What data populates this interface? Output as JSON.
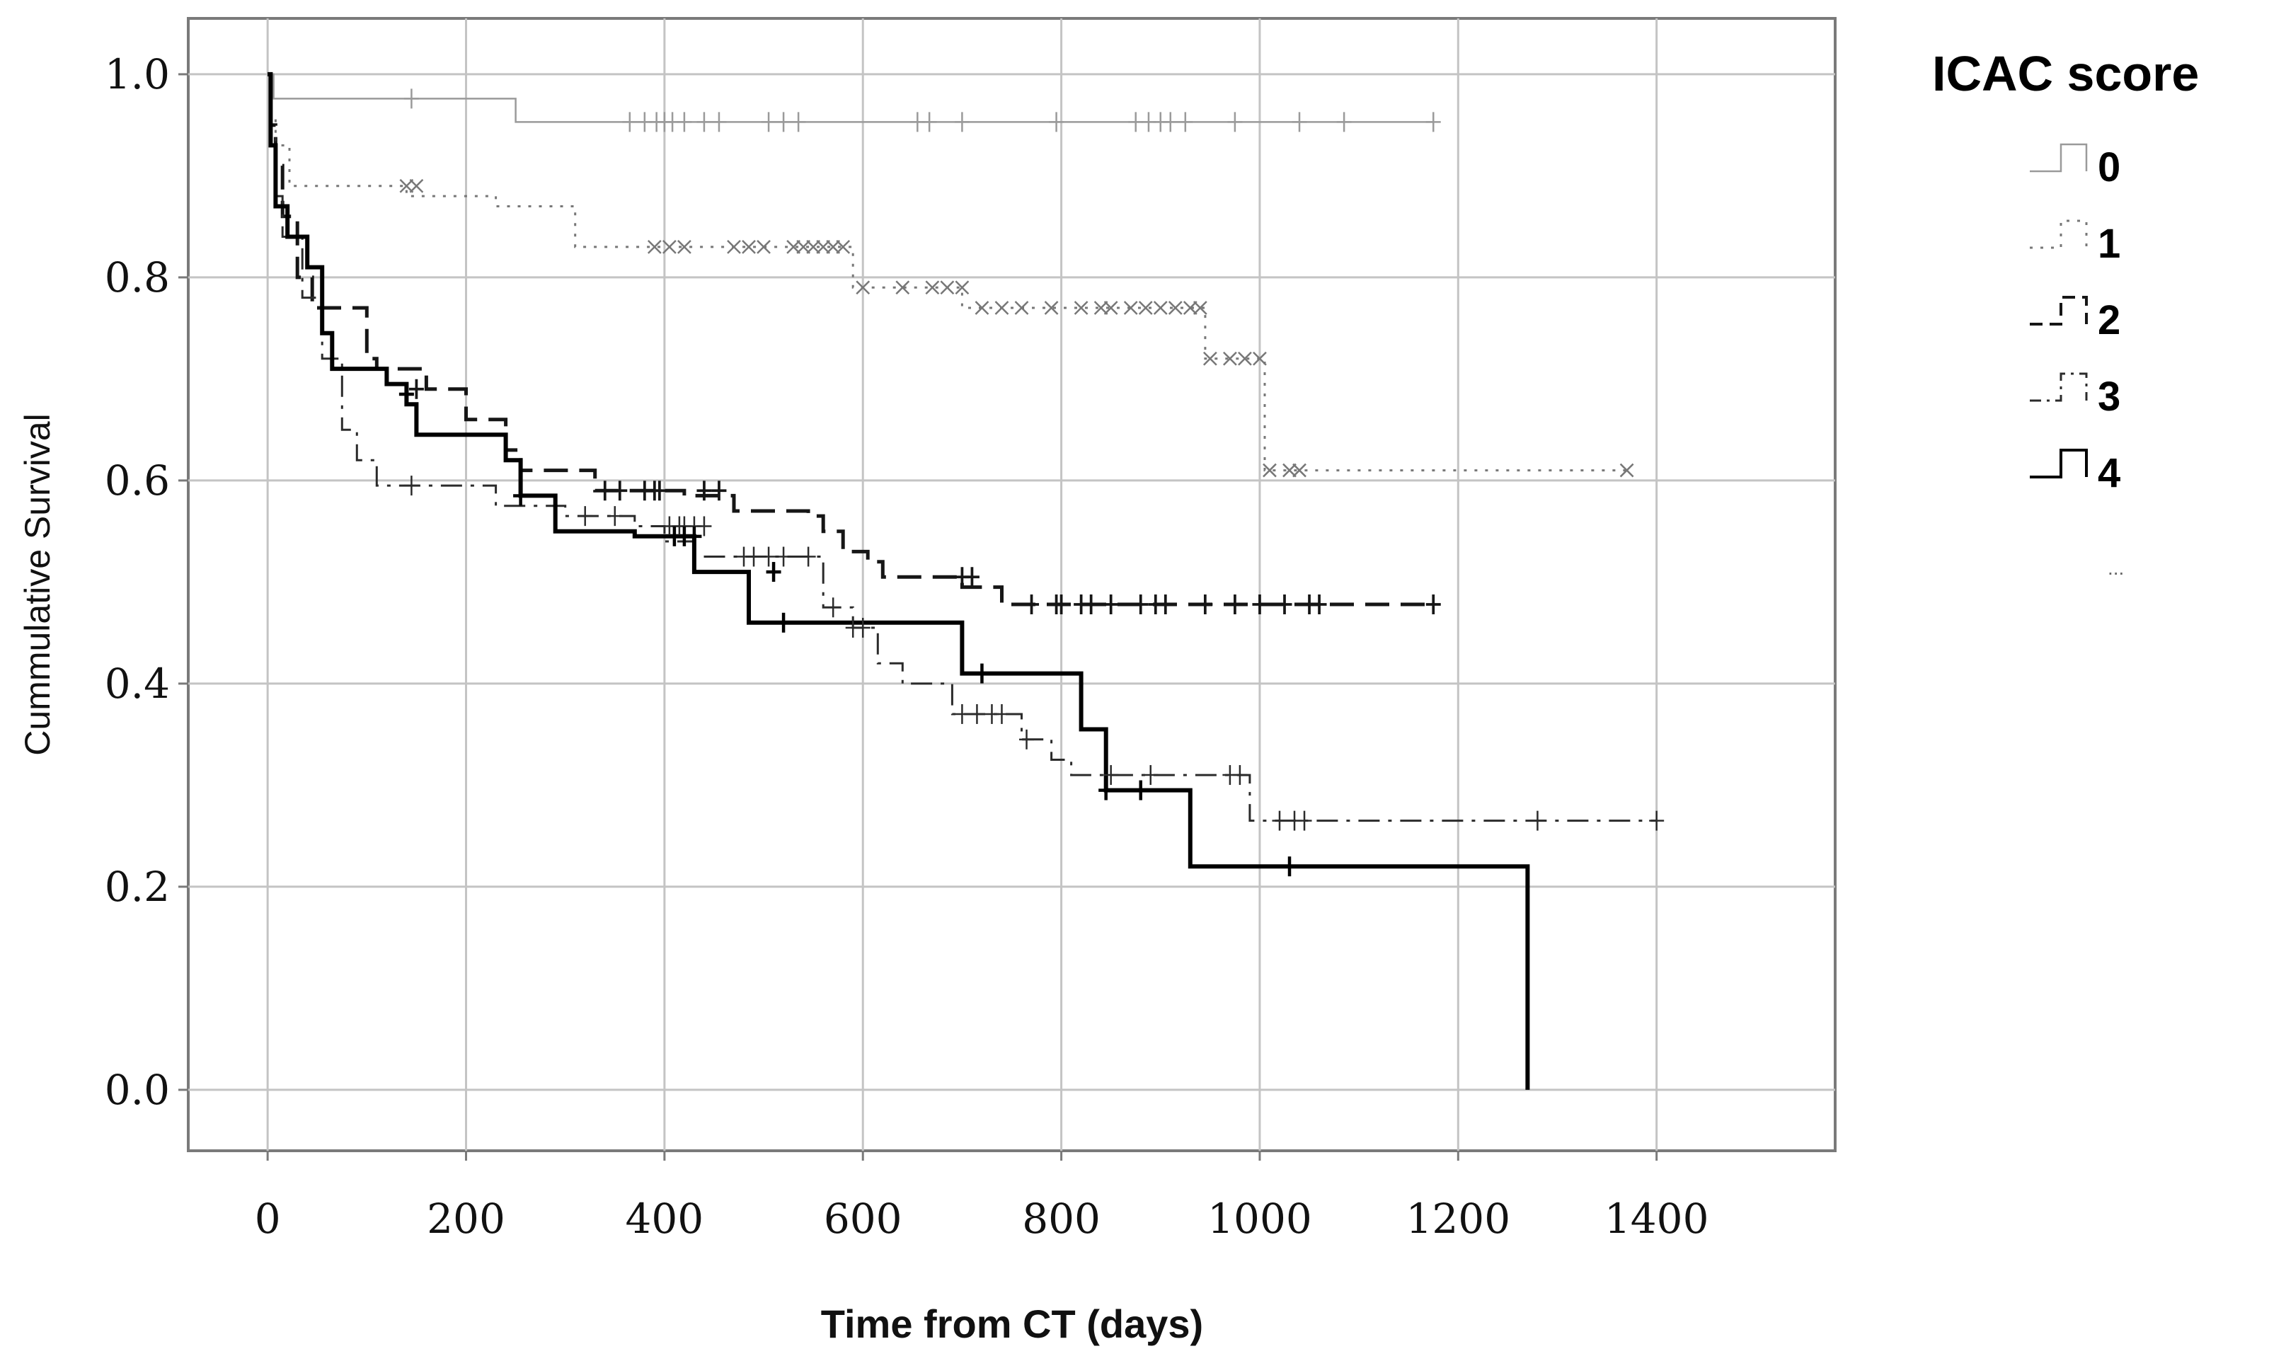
{
  "chart_data": {
    "type": "line",
    "subtype": "kaplan-meier-step",
    "title": "",
    "xlabel": "Time from CT (days)",
    "ylabel": "Cummulative Survival",
    "xlim": [
      -80,
      1580
    ],
    "ylim": [
      -0.06,
      1.055
    ],
    "xticks": [
      0,
      200,
      400,
      600,
      800,
      1000,
      1200,
      1400
    ],
    "yticks": [
      0.0,
      0.2,
      0.4,
      0.6,
      0.8,
      1.0
    ],
    "xtick_labels": [
      "0",
      "200",
      "400",
      "600",
      "800",
      "1000",
      "1200",
      "1400"
    ],
    "ytick_labels": [
      "0.0",
      "0.2",
      "0.4",
      "0.6",
      "0.8",
      "1.0"
    ],
    "grid": true,
    "legend": {
      "title": "ICAC score",
      "position": "right",
      "entries": [
        "0",
        "1",
        "2",
        "3",
        "4"
      ],
      "extra_mark": "..."
    },
    "series": [
      {
        "name": "0",
        "color": "#9a9a9a",
        "style": "solid",
        "width": 2.5,
        "censor": "plus",
        "steps": [
          [
            0,
            1.0
          ],
          [
            6,
            0.976
          ],
          [
            250,
            0.953
          ],
          [
            1175,
            0.953
          ]
        ],
        "censored": [
          [
            145,
            0.976
          ],
          [
            365,
            0.953
          ],
          [
            380,
            0.953
          ],
          [
            392,
            0.953
          ],
          [
            400,
            0.953
          ],
          [
            408,
            0.953
          ],
          [
            420,
            0.953
          ],
          [
            440,
            0.953
          ],
          [
            455,
            0.953
          ],
          [
            505,
            0.953
          ],
          [
            520,
            0.953
          ],
          [
            535,
            0.953
          ],
          [
            655,
            0.953
          ],
          [
            667,
            0.953
          ],
          [
            700,
            0.953
          ],
          [
            795,
            0.953
          ],
          [
            875,
            0.953
          ],
          [
            888,
            0.953
          ],
          [
            900,
            0.953
          ],
          [
            910,
            0.953
          ],
          [
            925,
            0.953
          ],
          [
            975,
            0.953
          ],
          [
            1040,
            0.953
          ],
          [
            1085,
            0.953
          ],
          [
            1175,
            0.953
          ]
        ]
      },
      {
        "name": "1",
        "color": "#777777",
        "style": "dotted",
        "width": 3,
        "censor": "x",
        "steps": [
          [
            0,
            1.0
          ],
          [
            3,
            0.96
          ],
          [
            8,
            0.93
          ],
          [
            22,
            0.89
          ],
          [
            140,
            0.88
          ],
          [
            230,
            0.87
          ],
          [
            310,
            0.83
          ],
          [
            590,
            0.79
          ],
          [
            700,
            0.77
          ],
          [
            945,
            0.72
          ],
          [
            1005,
            0.61
          ],
          [
            1370,
            0.61
          ]
        ],
        "censored": [
          [
            140,
            0.89
          ],
          [
            150,
            0.89
          ],
          [
            390,
            0.83
          ],
          [
            405,
            0.83
          ],
          [
            420,
            0.83
          ],
          [
            470,
            0.83
          ],
          [
            485,
            0.83
          ],
          [
            500,
            0.83
          ],
          [
            530,
            0.83
          ],
          [
            540,
            0.83
          ],
          [
            550,
            0.83
          ],
          [
            560,
            0.83
          ],
          [
            570,
            0.83
          ],
          [
            580,
            0.83
          ],
          [
            600,
            0.79
          ],
          [
            640,
            0.79
          ],
          [
            670,
            0.79
          ],
          [
            685,
            0.79
          ],
          [
            700,
            0.79
          ],
          [
            720,
            0.77
          ],
          [
            740,
            0.77
          ],
          [
            760,
            0.77
          ],
          [
            790,
            0.77
          ],
          [
            820,
            0.77
          ],
          [
            840,
            0.77
          ],
          [
            850,
            0.77
          ],
          [
            870,
            0.77
          ],
          [
            885,
            0.77
          ],
          [
            900,
            0.77
          ],
          [
            915,
            0.77
          ],
          [
            930,
            0.77
          ],
          [
            940,
            0.77
          ],
          [
            950,
            0.72
          ],
          [
            970,
            0.72
          ],
          [
            985,
            0.72
          ],
          [
            1000,
            0.72
          ],
          [
            1010,
            0.61
          ],
          [
            1030,
            0.61
          ],
          [
            1040,
            0.61
          ],
          [
            1370,
            0.61
          ]
        ]
      },
      {
        "name": "2",
        "color": "#161616",
        "style": "dashed",
        "width": 5,
        "censor": "plus",
        "steps": [
          [
            0,
            1.0
          ],
          [
            3,
            0.95
          ],
          [
            8,
            0.91
          ],
          [
            15,
            0.86
          ],
          [
            30,
            0.8
          ],
          [
            45,
            0.77
          ],
          [
            100,
            0.72
          ],
          [
            110,
            0.71
          ],
          [
            160,
            0.69
          ],
          [
            200,
            0.66
          ],
          [
            240,
            0.63
          ],
          [
            255,
            0.61
          ],
          [
            330,
            0.59
          ],
          [
            420,
            0.585
          ],
          [
            470,
            0.57
          ],
          [
            545,
            0.565
          ],
          [
            560,
            0.55
          ],
          [
            580,
            0.53
          ],
          [
            605,
            0.52
          ],
          [
            620,
            0.505
          ],
          [
            700,
            0.495
          ],
          [
            740,
            0.478
          ],
          [
            1175,
            0.478
          ]
        ],
        "censored": [
          [
            150,
            0.69
          ],
          [
            340,
            0.59
          ],
          [
            355,
            0.59
          ],
          [
            380,
            0.59
          ],
          [
            390,
            0.59
          ],
          [
            395,
            0.59
          ],
          [
            440,
            0.59
          ],
          [
            455,
            0.59
          ],
          [
            700,
            0.505
          ],
          [
            710,
            0.505
          ],
          [
            770,
            0.478
          ],
          [
            795,
            0.478
          ],
          [
            800,
            0.478
          ],
          [
            820,
            0.478
          ],
          [
            830,
            0.478
          ],
          [
            850,
            0.478
          ],
          [
            880,
            0.478
          ],
          [
            895,
            0.478
          ],
          [
            905,
            0.478
          ],
          [
            945,
            0.478
          ],
          [
            975,
            0.478
          ],
          [
            1000,
            0.478
          ],
          [
            1025,
            0.478
          ],
          [
            1050,
            0.478
          ],
          [
            1060,
            0.478
          ],
          [
            1175,
            0.478
          ]
        ]
      },
      {
        "name": "3",
        "color": "#2b2b2b",
        "style": "dashdot",
        "width": 3,
        "censor": "plus",
        "steps": [
          [
            0,
            1.0
          ],
          [
            3,
            0.94
          ],
          [
            8,
            0.88
          ],
          [
            15,
            0.84
          ],
          [
            35,
            0.78
          ],
          [
            55,
            0.72
          ],
          [
            75,
            0.65
          ],
          [
            90,
            0.62
          ],
          [
            110,
            0.595
          ],
          [
            230,
            0.575
          ],
          [
            300,
            0.565
          ],
          [
            370,
            0.555
          ],
          [
            400,
            0.54
          ],
          [
            430,
            0.525
          ],
          [
            560,
            0.475
          ],
          [
            590,
            0.455
          ],
          [
            615,
            0.42
          ],
          [
            640,
            0.4
          ],
          [
            690,
            0.37
          ],
          [
            760,
            0.345
          ],
          [
            790,
            0.325
          ],
          [
            810,
            0.31
          ],
          [
            990,
            0.265
          ],
          [
            1400,
            0.265
          ]
        ],
        "censored": [
          [
            145,
            0.595
          ],
          [
            320,
            0.565
          ],
          [
            350,
            0.565
          ],
          [
            405,
            0.555
          ],
          [
            415,
            0.555
          ],
          [
            420,
            0.555
          ],
          [
            430,
            0.555
          ],
          [
            440,
            0.555
          ],
          [
            480,
            0.525
          ],
          [
            490,
            0.525
          ],
          [
            505,
            0.525
          ],
          [
            520,
            0.525
          ],
          [
            545,
            0.525
          ],
          [
            570,
            0.475
          ],
          [
            590,
            0.455
          ],
          [
            600,
            0.455
          ],
          [
            700,
            0.37
          ],
          [
            715,
            0.37
          ],
          [
            730,
            0.37
          ],
          [
            740,
            0.37
          ],
          [
            765,
            0.345
          ],
          [
            850,
            0.31
          ],
          [
            890,
            0.31
          ],
          [
            970,
            0.31
          ],
          [
            980,
            0.31
          ],
          [
            1020,
            0.265
          ],
          [
            1035,
            0.265
          ],
          [
            1045,
            0.265
          ],
          [
            1280,
            0.265
          ],
          [
            1400,
            0.265
          ]
        ]
      },
      {
        "name": "4",
        "color": "#000000",
        "style": "solid",
        "width": 6,
        "censor": "plus",
        "steps": [
          [
            0,
            1.0
          ],
          [
            3,
            0.93
          ],
          [
            8,
            0.87
          ],
          [
            20,
            0.84
          ],
          [
            40,
            0.81
          ],
          [
            55,
            0.745
          ],
          [
            65,
            0.71
          ],
          [
            120,
            0.695
          ],
          [
            140,
            0.675
          ],
          [
            150,
            0.645
          ],
          [
            240,
            0.62
          ],
          [
            255,
            0.585
          ],
          [
            290,
            0.55
          ],
          [
            370,
            0.545
          ],
          [
            430,
            0.51
          ],
          [
            485,
            0.46
          ],
          [
            565,
            0.46
          ],
          [
            700,
            0.41
          ],
          [
            820,
            0.355
          ],
          [
            845,
            0.295
          ],
          [
            930,
            0.22
          ],
          [
            1270,
            0.22
          ],
          [
            1270,
            0.0
          ]
        ],
        "censored": [
          [
            140,
            0.685
          ],
          [
            255,
            0.585
          ],
          [
            410,
            0.545
          ],
          [
            420,
            0.545
          ],
          [
            430,
            0.545
          ],
          [
            510,
            0.51
          ],
          [
            520,
            0.46
          ],
          [
            720,
            0.41
          ],
          [
            845,
            0.295
          ],
          [
            880,
            0.295
          ],
          [
            1030,
            0.22
          ]
        ]
      }
    ]
  }
}
